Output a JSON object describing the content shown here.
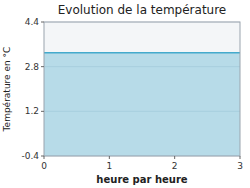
{
  "chart_data": {
    "type": "area",
    "title": "Evolution de la température",
    "xlabel": "heure par heure",
    "ylabel": "Température en °C",
    "x": [
      0,
      3
    ],
    "values": [
      3.3,
      3.3
    ],
    "color": "#44aacc",
    "xlim": [
      0,
      3
    ],
    "ylim": [
      -0.4,
      4.4
    ],
    "xticks": [
      0,
      1,
      2,
      3
    ],
    "yticks": [
      -0.4,
      1.2,
      2.8,
      4.4
    ],
    "grid": true
  }
}
